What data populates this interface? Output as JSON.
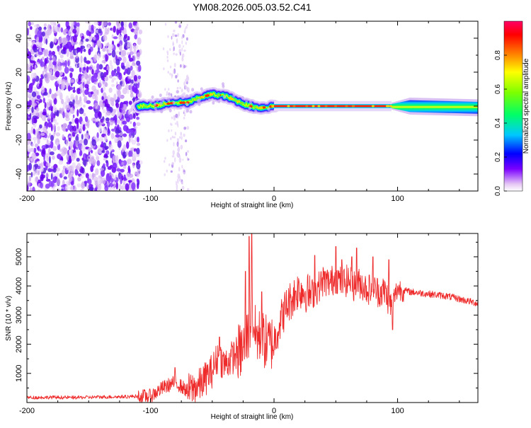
{
  "chart_data": [
    {
      "type": "heatmap",
      "title": "YM08.2026.005.03.52.C41",
      "xlabel": "Height of straight line (km)",
      "ylabel": "Frequency (Hz)",
      "xlim": [
        -200,
        165
      ],
      "ylim": [
        -50,
        50
      ],
      "x_ticks": [
        {
          "value": -200,
          "label": "-200"
        },
        {
          "value": -100,
          "label": "-100"
        },
        {
          "value": 0,
          "label": "0"
        },
        {
          "value": 100,
          "label": "100"
        }
      ],
      "y_ticks": [
        {
          "value": 40,
          "label": "40"
        },
        {
          "value": 20,
          "label": "20"
        },
        {
          "value": 0,
          "label": "0"
        },
        {
          "value": -20,
          "label": "-20"
        },
        {
          "value": -40,
          "label": "-40"
        }
      ],
      "colorbar": {
        "label": "Normalized spectral amplitude",
        "range": [
          0,
          1
        ],
        "ticks": [
          {
            "value": 0.0,
            "label": "0.0"
          },
          {
            "value": 0.2,
            "label": "0.2"
          },
          {
            "value": 0.4,
            "label": "0.4"
          },
          {
            "value": 0.6,
            "label": "0.6"
          },
          {
            "value": 0.8,
            "label": "0.8"
          }
        ],
        "colors": [
          "#ffffff",
          "#e6c8f5",
          "#7a00ff",
          "#0000ff",
          "#00c8ff",
          "#00ff66",
          "#7dff00",
          "#ffff00",
          "#ff8800",
          "#ff0000",
          "#ff0066"
        ]
      },
      "ridge": {
        "x": [
          -110,
          -100,
          -90,
          -80,
          -70,
          -60,
          -50,
          -40,
          -30,
          -20,
          -10,
          0,
          20,
          40,
          60,
          80,
          100,
          120,
          140,
          165
        ],
        "freq": [
          0,
          0,
          1,
          2,
          2,
          5,
          7,
          6,
          3,
          0,
          -1,
          0,
          0,
          0,
          0,
          0,
          0,
          0,
          0,
          -1
        ]
      }
    },
    {
      "type": "line",
      "title": "",
      "xlabel": "Height of straight line (km)",
      "ylabel": "SNR (10 * v/v)",
      "xlim": [
        -200,
        165
      ],
      "ylim": [
        0,
        5800
      ],
      "x_ticks": [
        {
          "value": -200,
          "label": "-200"
        },
        {
          "value": -100,
          "label": "-100"
        },
        {
          "value": 0,
          "label": "0"
        },
        {
          "value": 100,
          "label": "100"
        }
      ],
      "y_ticks": [
        {
          "value": 1000,
          "label": "1000"
        },
        {
          "value": 2000,
          "label": "2000"
        },
        {
          "value": 3000,
          "label": "3000"
        },
        {
          "value": 4000,
          "label": "4000"
        },
        {
          "value": 5000,
          "label": "5000"
        }
      ],
      "series": [
        {
          "name": "SNR",
          "color": "#ee2a2a",
          "x": [
            -200,
            -180,
            -160,
            -140,
            -120,
            -100,
            -90,
            -80,
            -70,
            -60,
            -50,
            -45,
            -40,
            -35,
            -30,
            -25,
            -20,
            -18,
            -15,
            -10,
            -5,
            0,
            5,
            10,
            15,
            20,
            25,
            30,
            35,
            40,
            45,
            50,
            55,
            60,
            65,
            70,
            75,
            80,
            85,
            90,
            95,
            98,
            100,
            105,
            110,
            120,
            130,
            140,
            150,
            160,
            165
          ],
          "y": [
            150,
            160,
            150,
            170,
            180,
            220,
            500,
            700,
            400,
            600,
            1100,
            1600,
            1300,
            1500,
            1700,
            1800,
            2500,
            3200,
            2300,
            2200,
            2000,
            2100,
            2800,
            3300,
            3600,
            3900,
            3800,
            3700,
            3900,
            4200,
            4100,
            4300,
            4100,
            4200,
            4000,
            4100,
            3900,
            3900,
            3800,
            3800,
            3300,
            3700,
            3900,
            3850,
            3800,
            3750,
            3700,
            3650,
            3550,
            3450,
            3400
          ]
        }
      ]
    }
  ]
}
